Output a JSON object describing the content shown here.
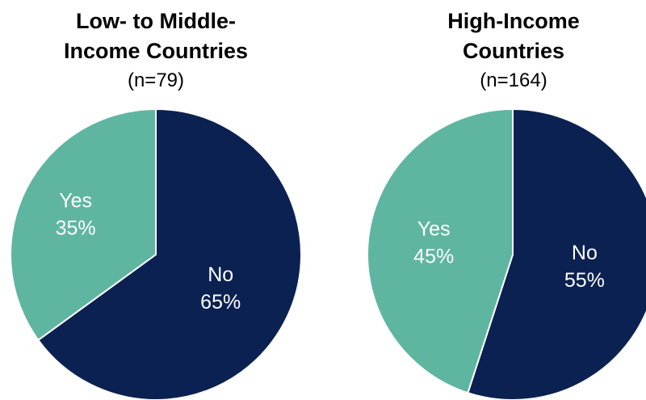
{
  "chart_data": [
    {
      "type": "pie",
      "title_lines": [
        "Low- to Middle-",
        "Income Countries"
      ],
      "subtitle": "(n=79)",
      "slices": [
        {
          "label": "No",
          "value": 65,
          "value_label": "65%",
          "color": "#0b2152"
        },
        {
          "label": "Yes",
          "value": 35,
          "value_label": "35%",
          "color": "#5fb6a0"
        }
      ]
    },
    {
      "type": "pie",
      "title_lines": [
        "High-Income",
        "Countries"
      ],
      "subtitle": "(n=164)",
      "slices": [
        {
          "label": "No",
          "value": 55,
          "value_label": "55%",
          "color": "#0b2152"
        },
        {
          "label": "Yes",
          "value": 45,
          "value_label": "45%",
          "color": "#5fb6a0"
        }
      ]
    }
  ]
}
